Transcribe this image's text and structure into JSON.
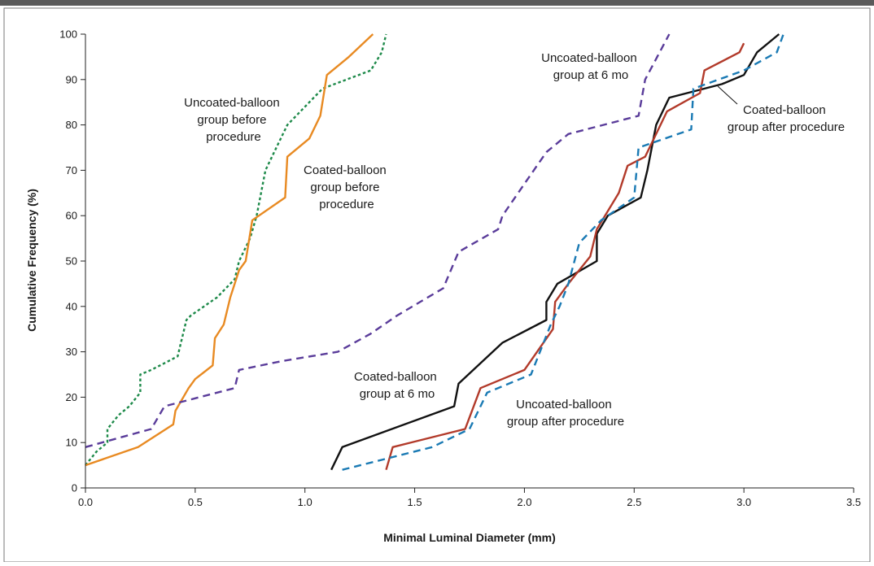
{
  "chart_data": {
    "type": "line",
    "xlabel": "Minimal Luminal Diameter (mm)",
    "ylabel": "Cumulative Frequency (%)",
    "xlim": [
      0,
      3.5
    ],
    "ylim": [
      0,
      100
    ],
    "x_ticks": [
      "0.0",
      "0.5",
      "1.0",
      "1.5",
      "2.0",
      "2.5",
      "3.0",
      "3.5"
    ],
    "y_ticks": [
      "0",
      "10",
      "20",
      "30",
      "40",
      "50",
      "60",
      "70",
      "80",
      "90",
      "100"
    ],
    "grid": false,
    "series": [
      {
        "color": "#1e8a4a",
        "style": "dotted",
        "points": [
          [
            0.0,
            5
          ],
          [
            0.05,
            8
          ],
          [
            0.1,
            10
          ],
          [
            0.1,
            13
          ],
          [
            0.15,
            16
          ],
          [
            0.2,
            18
          ],
          [
            0.25,
            21
          ],
          [
            0.25,
            25
          ],
          [
            0.3,
            26
          ],
          [
            0.42,
            29
          ],
          [
            0.46,
            37
          ],
          [
            0.48,
            38
          ],
          [
            0.6,
            42
          ],
          [
            0.68,
            46
          ],
          [
            0.7,
            50
          ],
          [
            0.75,
            55
          ],
          [
            0.78,
            60
          ],
          [
            0.82,
            70
          ],
          [
            0.88,
            76
          ],
          [
            0.92,
            80
          ],
          [
            1.0,
            84
          ],
          [
            1.08,
            88
          ],
          [
            1.3,
            92
          ],
          [
            1.35,
            96
          ],
          [
            1.37,
            100
          ]
        ]
      },
      {
        "color": "#e88a22",
        "style": "solid",
        "points": [
          [
            0.0,
            5
          ],
          [
            0.24,
            9
          ],
          [
            0.4,
            14
          ],
          [
            0.41,
            17
          ],
          [
            0.47,
            22
          ],
          [
            0.5,
            24
          ],
          [
            0.58,
            27
          ],
          [
            0.59,
            33
          ],
          [
            0.63,
            36
          ],
          [
            0.66,
            42
          ],
          [
            0.7,
            48
          ],
          [
            0.73,
            50
          ],
          [
            0.76,
            59
          ],
          [
            0.91,
            64
          ],
          [
            0.92,
            73
          ],
          [
            1.02,
            77
          ],
          [
            1.07,
            82
          ],
          [
            1.1,
            91
          ],
          [
            1.2,
            95
          ],
          [
            1.31,
            100
          ]
        ]
      },
      {
        "color": "#5a3c9a",
        "style": "dashed",
        "points": [
          [
            0.0,
            9
          ],
          [
            0.3,
            13
          ],
          [
            0.36,
            18
          ],
          [
            0.68,
            22
          ],
          [
            0.7,
            26
          ],
          [
            0.9,
            28
          ],
          [
            1.15,
            30
          ],
          [
            1.3,
            34
          ],
          [
            1.42,
            38
          ],
          [
            1.63,
            44
          ],
          [
            1.7,
            52
          ],
          [
            1.88,
            57
          ],
          [
            1.9,
            60
          ],
          [
            2.0,
            67
          ],
          [
            2.1,
            74
          ],
          [
            2.2,
            78
          ],
          [
            2.52,
            82
          ],
          [
            2.55,
            90
          ],
          [
            2.66,
            100
          ]
        ]
      },
      {
        "color": "#111111",
        "style": "solid",
        "points": [
          [
            1.12,
            4
          ],
          [
            1.17,
            9
          ],
          [
            1.68,
            18
          ],
          [
            1.7,
            23
          ],
          [
            1.9,
            32
          ],
          [
            2.1,
            37
          ],
          [
            2.1,
            41
          ],
          [
            2.15,
            45
          ],
          [
            2.33,
            50
          ],
          [
            2.33,
            56
          ],
          [
            2.38,
            60
          ],
          [
            2.53,
            64
          ],
          [
            2.56,
            70
          ],
          [
            2.6,
            80
          ],
          [
            2.66,
            86
          ],
          [
            2.9,
            89
          ],
          [
            3.0,
            91
          ],
          [
            3.06,
            96
          ],
          [
            3.16,
            100
          ]
        ]
      },
      {
        "color": "#b23a2a",
        "style": "solid",
        "points": [
          [
            1.37,
            4
          ],
          [
            1.4,
            9
          ],
          [
            1.73,
            13
          ],
          [
            1.8,
            22
          ],
          [
            2.0,
            26
          ],
          [
            2.13,
            35
          ],
          [
            2.14,
            41
          ],
          [
            2.2,
            45
          ],
          [
            2.3,
            51
          ],
          [
            2.33,
            57
          ],
          [
            2.43,
            65
          ],
          [
            2.47,
            71
          ],
          [
            2.55,
            73
          ],
          [
            2.65,
            83
          ],
          [
            2.8,
            87
          ],
          [
            2.82,
            92
          ],
          [
            2.98,
            96
          ],
          [
            3.0,
            98
          ]
        ]
      },
      {
        "color": "#1a7ab4",
        "style": "dashed",
        "points": [
          [
            1.17,
            4
          ],
          [
            1.58,
            9
          ],
          [
            1.75,
            13
          ],
          [
            1.83,
            21
          ],
          [
            2.03,
            25
          ],
          [
            2.12,
            36
          ],
          [
            2.16,
            40
          ],
          [
            2.2,
            45
          ],
          [
            2.25,
            54
          ],
          [
            2.35,
            59
          ],
          [
            2.5,
            64
          ],
          [
            2.52,
            75
          ],
          [
            2.76,
            79
          ],
          [
            2.77,
            88
          ],
          [
            3.0,
            92
          ],
          [
            3.15,
            96
          ],
          [
            3.18,
            100
          ]
        ]
      }
    ],
    "annotations": [
      {
        "lines": [
          "Uncoated-balloon",
          "group before",
          "procedure"
        ]
      },
      {
        "lines": [
          "Coated-balloon",
          "group before",
          "procedure"
        ]
      },
      {
        "lines": [
          "Uncoated-balloon",
          "group at 6 mo"
        ]
      },
      {
        "lines": [
          "Coated-balloon",
          "group after procedure"
        ]
      },
      {
        "lines": [
          "Coated-balloon",
          "group at 6 mo"
        ]
      },
      {
        "lines": [
          "Uncoated-balloon",
          "group after procedure"
        ]
      }
    ]
  }
}
